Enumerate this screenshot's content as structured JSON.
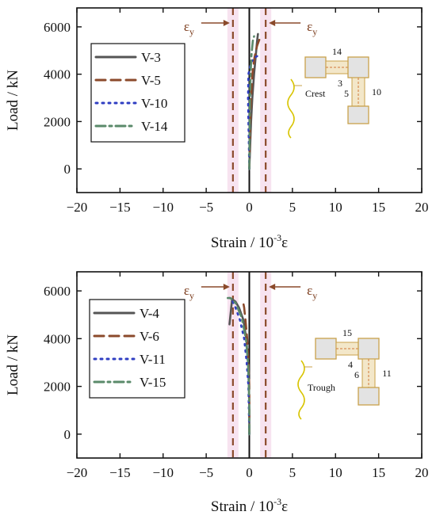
{
  "chart_data": [
    {
      "type": "line",
      "xlabel": "Strain / 10",
      "xlabel_sup": "-3",
      "xlabel_tail": "ε",
      "ylabel": "Load / kN",
      "xlim": [
        -20,
        20
      ],
      "ylim": [
        -1000,
        6800
      ],
      "xticks": [
        "−20",
        "−15",
        "−10",
        "−5",
        "0",
        "5",
        "10",
        "15",
        "20"
      ],
      "yticks": [
        "0",
        "2000",
        "4000",
        "6000"
      ],
      "yield_label": "ε",
      "yield_sub": "y",
      "yield_strain": [
        -1.9,
        1.9
      ],
      "series": [
        {
          "name": "V-3",
          "color": "#555555",
          "dash": "solid",
          "points": [
            [
              0,
              0
            ],
            [
              0.1,
              1000
            ],
            [
              0.2,
              2000
            ],
            [
              0.35,
              3000
            ],
            [
              0.55,
              4000
            ],
            [
              0.75,
              4800
            ],
            [
              0.9,
              5400
            ],
            [
              1.0,
              5700
            ]
          ]
        },
        {
          "name": "V-5",
          "color": "#8b4a2b",
          "dash": "dash",
          "points": [
            [
              0,
              0
            ],
            [
              0.05,
              1000
            ],
            [
              0.1,
              2000
            ],
            [
              0.2,
              3000
            ],
            [
              0.35,
              4000
            ],
            [
              0.6,
              4700
            ],
            [
              0.9,
              5200
            ],
            [
              1.2,
              5500
            ]
          ]
        },
        {
          "name": "V-10",
          "color": "#2f3ec2",
          "dash": "dot",
          "points": [
            [
              0,
              0
            ],
            [
              -0.05,
              1000
            ],
            [
              -0.1,
              2000
            ],
            [
              -0.15,
              3000
            ],
            [
              -0.1,
              4000
            ],
            [
              0.2,
              4500
            ],
            [
              0.6,
              4700
            ],
            [
              1.1,
              4800
            ]
          ]
        },
        {
          "name": "V-14",
          "color": "#5a8a6a",
          "dash": "dashdot",
          "points": [
            [
              0,
              0
            ],
            [
              0.02,
              1000
            ],
            [
              0.05,
              2000
            ],
            [
              0.08,
              3000
            ],
            [
              0.15,
              4000
            ],
            [
              0.25,
              4800
            ],
            [
              0.4,
              5400
            ],
            [
              0.55,
              5600
            ]
          ]
        }
      ],
      "inset": {
        "label": "Crest",
        "numbers": [
          "14",
          "3",
          "5",
          "10"
        ]
      }
    },
    {
      "type": "line",
      "xlabel": "Strain / 10",
      "xlabel_sup": "-3",
      "xlabel_tail": "ε",
      "ylabel": "Load / kN",
      "xlim": [
        -20,
        20
      ],
      "ylim": [
        -1000,
        6800
      ],
      "xticks": [
        "−20",
        "−15",
        "−10",
        "−5",
        "0",
        "5",
        "10",
        "15",
        "20"
      ],
      "yticks": [
        "0",
        "2000",
        "4000",
        "6000"
      ],
      "yield_label": "ε",
      "yield_sub": "y",
      "yield_strain": [
        -1.9,
        1.9
      ],
      "series": [
        {
          "name": "V-4",
          "color": "#555555",
          "dash": "solid",
          "points": [
            [
              0,
              0
            ],
            [
              0,
              1000
            ],
            [
              -0.05,
              2000
            ],
            [
              -0.15,
              3000
            ],
            [
              -0.35,
              4000
            ],
            [
              -0.7,
              4800
            ],
            [
              -1.2,
              5300
            ],
            [
              -1.6,
              5550
            ],
            [
              -2.0,
              5650
            ],
            [
              -2.3,
              4600
            ]
          ]
        },
        {
          "name": "V-6",
          "color": "#8b4a2b",
          "dash": "dash",
          "points": [
            [
              0,
              0
            ],
            [
              0,
              1000
            ],
            [
              0,
              2000
            ],
            [
              -0.1,
              3000
            ],
            [
              -0.25,
              4000
            ],
            [
              -0.45,
              4800
            ],
            [
              -0.6,
              5300
            ],
            [
              -0.7,
              5500
            ]
          ]
        },
        {
          "name": "V-11",
          "color": "#2f3ec2",
          "dash": "dot",
          "points": [
            [
              0,
              0
            ],
            [
              -0.05,
              1000
            ],
            [
              -0.1,
              2000
            ],
            [
              -0.3,
              3000
            ],
            [
              -0.6,
              4000
            ],
            [
              -1.1,
              4800
            ],
            [
              -1.6,
              5300
            ],
            [
              -2.0,
              5600
            ],
            [
              -2.3,
              5700
            ]
          ]
        },
        {
          "name": "V-15",
          "color": "#5a8a6a",
          "dash": "dashdot",
          "points": [
            [
              0,
              0
            ],
            [
              0,
              1000
            ],
            [
              -0.05,
              2000
            ],
            [
              -0.15,
              3000
            ],
            [
              -0.4,
              4000
            ],
            [
              -0.9,
              4900
            ],
            [
              -1.6,
              5500
            ],
            [
              -2.2,
              5700
            ],
            [
              -2.5,
              5700
            ]
          ]
        }
      ],
      "inset": {
        "label": "Trough",
        "numbers": [
          "15",
          "4",
          "6",
          "11"
        ]
      }
    }
  ]
}
